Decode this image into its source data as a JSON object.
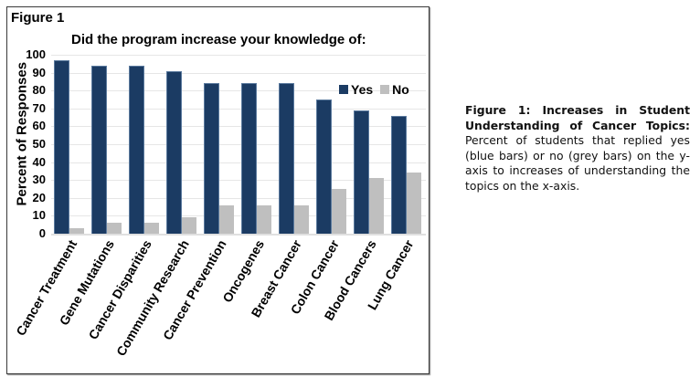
{
  "figure": {
    "label": "Figure 1",
    "caption_title": "Figure 1: Increases in Student Understanding of Cancer Topics:",
    "caption_body": "Percent of students that replied yes (blue bars) or no (grey bars) on the y-axis to increases of understanding the topics on the x-axis."
  },
  "colors": {
    "yes": "#1b3b63",
    "no": "#bfbfbf"
  },
  "chart_data": {
    "type": "bar",
    "title": "Did the program increase your knowledge of:",
    "xlabel": "",
    "ylabel": "Percent of Responses",
    "ylim": [
      0,
      100
    ],
    "yticks": [
      0,
      10,
      20,
      30,
      40,
      50,
      60,
      70,
      80,
      90,
      100
    ],
    "grid": true,
    "legend_position": "upper right",
    "categories": [
      "Cancer Treatment",
      "Gene Mutations",
      "Cancer Disparities",
      "Community Research",
      "Cancer Prevention",
      "Oncogenes",
      "Breast Cancer",
      "Colon Cancer",
      "Blood Cancers",
      "Lung Cancer"
    ],
    "series": [
      {
        "name": "Yes",
        "color": "#1b3b63",
        "values": [
          97,
          94,
          94,
          91,
          84,
          84,
          84,
          75,
          69,
          66
        ]
      },
      {
        "name": "No",
        "color": "#bfbfbf",
        "values": [
          3,
          6,
          6,
          9,
          16,
          16,
          16,
          25,
          31,
          34
        ]
      }
    ]
  }
}
